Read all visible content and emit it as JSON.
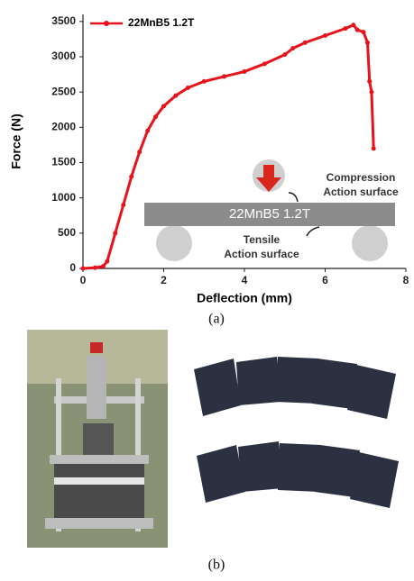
{
  "chart_data": {
    "type": "line",
    "x": [
      0,
      0.3,
      0.5,
      0.6,
      0.8,
      1.0,
      1.2,
      1.4,
      1.6,
      1.8,
      2.0,
      2.3,
      2.6,
      3.0,
      3.5,
      4.0,
      4.5,
      5.0,
      5.2,
      5.5,
      6.0,
      6.5,
      6.7,
      6.8,
      6.95,
      7.05,
      7.1,
      7.15,
      7.2
    ],
    "series": [
      {
        "name": "22MnB5 1.2T",
        "color": "#e8121b",
        "values": [
          0,
          10,
          30,
          100,
          500,
          900,
          1300,
          1650,
          1950,
          2150,
          2300,
          2450,
          2560,
          2650,
          2720,
          2790,
          2900,
          3030,
          3120,
          3200,
          3300,
          3400,
          3450,
          3380,
          3350,
          3200,
          2650,
          2500,
          1700
        ]
      }
    ],
    "xlabel": "Deflection (mm)",
    "ylabel": "Force (N)",
    "xlim": [
      0,
      8
    ],
    "ylim": [
      0,
      3600
    ],
    "xticks": [
      0,
      2,
      4,
      6,
      8
    ],
    "yticks": [
      0,
      500,
      1000,
      1500,
      2000,
      2500,
      3000,
      3500
    ],
    "legend": "upper left",
    "annotations": {
      "specimen": "22MnB5 1.2T",
      "compression": [
        "Compression",
        "Action surface"
      ],
      "tensile": [
        "Tensile",
        "Action surface"
      ]
    }
  },
  "captions": [
    "(a)",
    "(b)"
  ]
}
